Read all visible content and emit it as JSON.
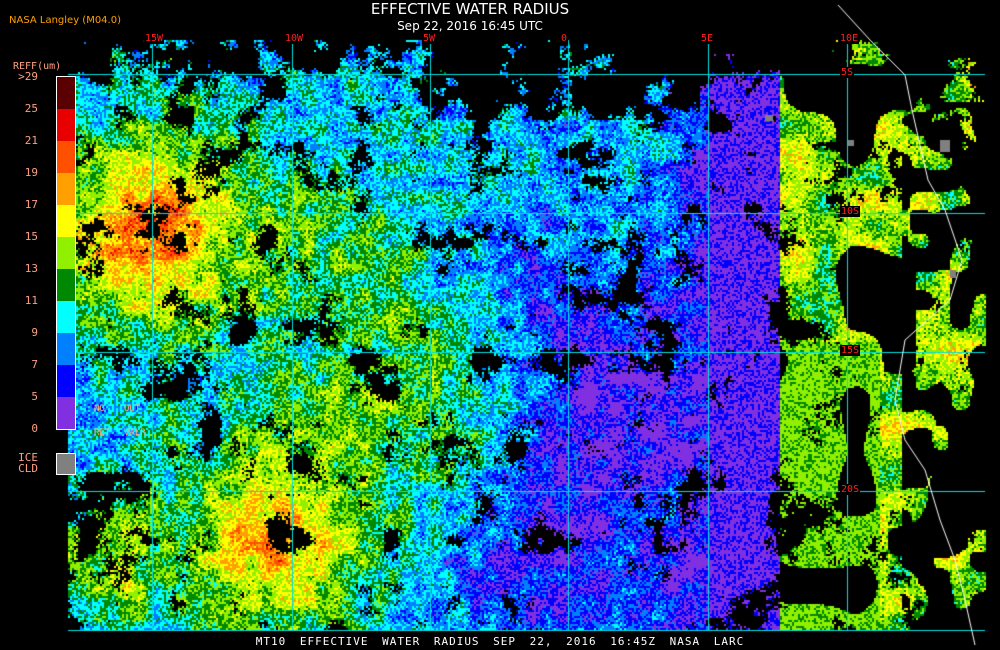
{
  "header": {
    "title": "EFFECTIVE WATER RADIUS",
    "subtitle": "Sep 22, 2016 16:45 UTC",
    "source": "NASA Langley (M04.0)"
  },
  "legend": {
    "units": "REFF(um)",
    "labels": [
      ">29",
      "25",
      "21",
      "19",
      "17",
      "15",
      "13",
      "11",
      "9",
      "7",
      "5",
      "0"
    ],
    "colors": [
      "#5a0000",
      "#e80000",
      "#ff5000",
      "#ffa000",
      "#ffff00",
      "#90f000",
      "#008800",
      "#00ffff",
      "#0080ff",
      "#0000ff",
      "#8030e0"
    ],
    "no_retrieval": [
      "NO",
      "RET"
    ],
    "out_of_range": [
      "OUT",
      "VALR"
    ],
    "ice_cloud": [
      "ICE",
      "CLD"
    ],
    "ice_color": "#808080"
  },
  "grid": {
    "longitudes": [
      "15W",
      "10W",
      "5W",
      "0",
      "5E",
      "10E"
    ],
    "latitudes": [
      "5S",
      "10S",
      "15S",
      "20S"
    ],
    "line_color": "#00e0e0",
    "label_color": "#ff2020"
  },
  "footer": "MT10  EFFECTIVE WATER RADIUS   SEP 22, 2016 16:45Z   NASA LARC"
}
